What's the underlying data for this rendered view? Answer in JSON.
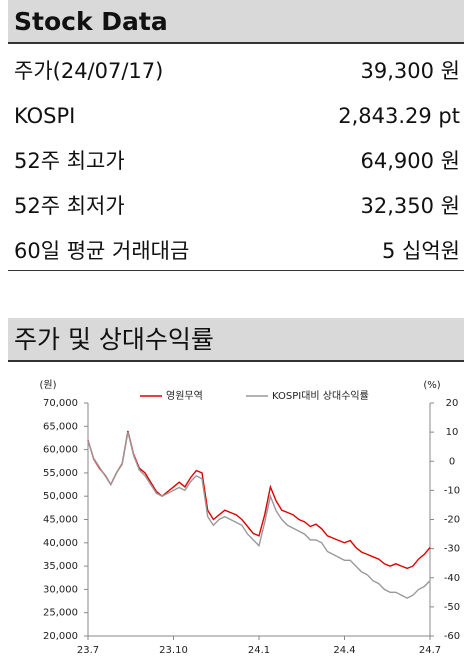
{
  "stock_table": {
    "title": "Stock Data",
    "rows": [
      [
        "주가(24/07/17)",
        "39,300 원"
      ],
      [
        "KOSPI",
        "2,843.29 pt"
      ],
      [
        "52주 최고가",
        "64,900 원"
      ],
      [
        "52주 최저가",
        "32,350 원"
      ],
      [
        "60일 평균 거래대금",
        "5 십억원"
      ]
    ]
  },
  "chart_section_title": "주가 및 상대수익률",
  "chart_data": {
    "type": "line",
    "ylabel": "(원)",
    "y2label": "(%)",
    "categories": [
      "23.7",
      null,
      null,
      null,
      null,
      null,
      null,
      null,
      null,
      null,
      null,
      null,
      null,
      null,
      null,
      "23.10",
      null,
      null,
      null,
      null,
      null,
      null,
      null,
      null,
      null,
      null,
      null,
      null,
      null,
      null,
      "24.1",
      null,
      null,
      null,
      null,
      null,
      null,
      null,
      null,
      null,
      null,
      null,
      null,
      null,
      null,
      "24.4",
      null,
      null,
      null,
      null,
      null,
      null,
      null,
      null,
      null,
      null,
      null,
      null,
      null,
      null,
      "24.7"
    ],
    "series": [
      {
        "name": "영원무역",
        "color": "#e00000",
        "values": [
          62000,
          58000,
          56000,
          54500,
          52500,
          55000,
          57000,
          64000,
          59000,
          56000,
          55000,
          53000,
          51000,
          50000,
          51000,
          52000,
          53000,
          52000,
          54000,
          55500,
          55000,
          47000,
          45000,
          46000,
          47000,
          46500,
          46000,
          45000,
          43500,
          42000,
          41500,
          46000,
          52000,
          49000,
          47000,
          46500,
          46000,
          45000,
          44500,
          43500,
          44000,
          43000,
          41500,
          41000,
          40500,
          40000,
          40500,
          39000,
          38000,
          37500,
          37000,
          36500,
          35500,
          35000,
          35500,
          35000,
          34500,
          35000,
          36500,
          37500,
          39000
        ]
      },
      {
        "name": "KOSPI대비 상대수익률",
        "color": "#999999",
        "axis": "y2",
        "values": [
          7,
          1,
          -2,
          -5,
          -8,
          -4,
          -1,
          10,
          2,
          -3,
          -5,
          -8,
          -11,
          -12,
          -11,
          -10,
          -9,
          -10,
          -7,
          -5,
          -6,
          -19,
          -22,
          -20,
          -19,
          -20,
          -21,
          -22,
          -25,
          -27,
          -29,
          -21,
          -12,
          -17,
          -20,
          -22,
          -23,
          -24,
          -25,
          -27,
          -27,
          -28,
          -31,
          -32,
          -33,
          -34,
          -34,
          -36,
          -38,
          -39,
          -41,
          -42,
          -44,
          -45,
          -45,
          -46,
          -47,
          -46,
          -44,
          -43,
          -41
        ]
      }
    ],
    "ylim": [
      20000,
      70000
    ],
    "yticks": [
      {
        "value": 20000,
        "label": "20,000"
      },
      {
        "value": 25000,
        "label": "25,000"
      },
      {
        "value": 30000,
        "label": "30,000"
      },
      {
        "value": 35000,
        "label": "35,000"
      },
      {
        "value": 40000,
        "label": "40,000"
      },
      {
        "value": 45000,
        "label": "45,000"
      },
      {
        "value": 50000,
        "label": "50,000"
      },
      {
        "value": 55000,
        "label": "55,000"
      },
      {
        "value": 60000,
        "label": "60,000"
      },
      {
        "value": 65000,
        "label": "65,000"
      },
      {
        "value": 70000,
        "label": "70,000"
      }
    ],
    "y2lim": [
      -60,
      20
    ],
    "y2ticks": [
      -60,
      -50,
      -40,
      -30,
      -20,
      -10,
      0,
      10,
      20
    ],
    "legend": "top"
  }
}
